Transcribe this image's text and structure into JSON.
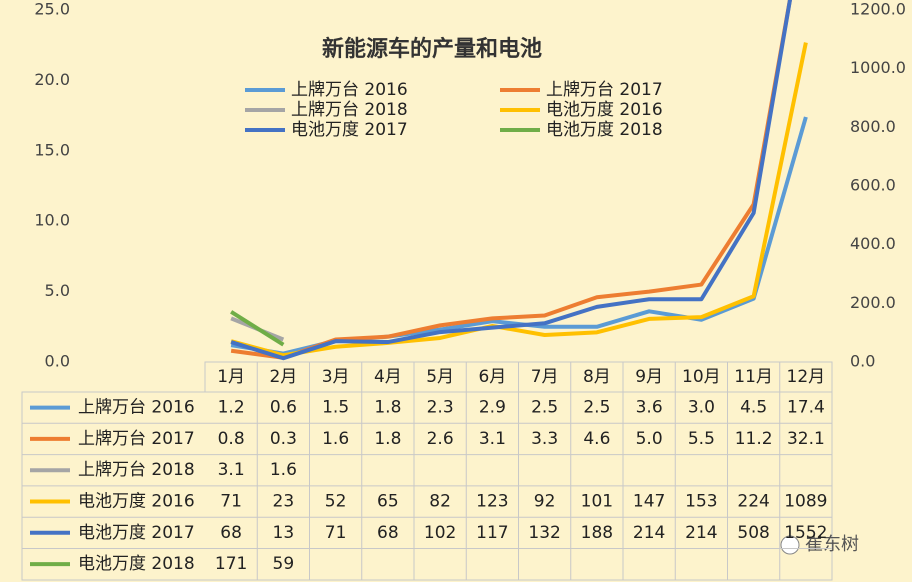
{
  "chart_data": {
    "type": "line",
    "title": "新能源车的产量和电池",
    "categories": [
      "1月",
      "2月",
      "3月",
      "4月",
      "5月",
      "6月",
      "7月",
      "8月",
      "9月",
      "10月",
      "11月",
      "12月"
    ],
    "ylim": [
      0,
      25
    ],
    "yticks": [
      {
        "value": 0,
        "label": "0.0"
      },
      {
        "value": 5,
        "label": "5.0"
      },
      {
        "value": 10,
        "label": "10.0"
      },
      {
        "value": 15,
        "label": "15.0"
      },
      {
        "value": 20,
        "label": "20.0"
      },
      {
        "value": 25,
        "label": "25.0"
      }
    ],
    "y2lim": [
      0,
      1200
    ],
    "y2ticks": [
      {
        "value": 0,
        "label": "0.0"
      },
      {
        "value": 200,
        "label": "200.0"
      },
      {
        "value": 400,
        "label": "400.0"
      },
      {
        "value": 600,
        "label": "600.0"
      },
      {
        "value": 800,
        "label": "800.0"
      },
      {
        "value": 1000,
        "label": "1000.0"
      },
      {
        "value": 1200,
        "label": "1200.0"
      }
    ],
    "grid": false,
    "legend": "top",
    "series": [
      {
        "name": "上牌万台 2016",
        "color": "#5b9bd5",
        "values": [
          1.2,
          0.6,
          1.5,
          1.8,
          2.3,
          2.9,
          2.5,
          2.5,
          3.6,
          3.0,
          4.5,
          17.4
        ],
        "value_labels": [
          "1.2",
          "0.6",
          "1.5",
          "1.8",
          "2.3",
          "2.9",
          "2.5",
          "2.5",
          "3.6",
          "3.0",
          "4.5",
          "17.4"
        ]
      },
      {
        "name": "上牌万台 2017",
        "color": "#ed7d31",
        "values": [
          0.8,
          0.3,
          1.6,
          1.8,
          2.6,
          3.1,
          3.3,
          4.6,
          5.0,
          5.5,
          11.2,
          32.1
        ],
        "value_labels": [
          "0.8",
          "0.3",
          "1.6",
          "1.8",
          "2.6",
          "3.1",
          "3.3",
          "4.6",
          "5.0",
          "5.5",
          "11.2",
          "32.1"
        ]
      },
      {
        "name": "上牌万台 2018",
        "color": "#a5a5a5",
        "values": [
          3.1,
          1.6,
          null,
          null,
          null,
          null,
          null,
          null,
          null,
          null,
          null,
          null
        ]
      },
      {
        "name": "电池万度 2016",
        "color": "#ffc000",
        "axis": "y2",
        "values": [
          71,
          23,
          52,
          65,
          82,
          123,
          92,
          101,
          147,
          153,
          224,
          1089
        ]
      },
      {
        "name": "电池万度 2017",
        "color": "#4472c4",
        "axis": "y2",
        "values": [
          68,
          13,
          71,
          68,
          102,
          117,
          132,
          188,
          214,
          214,
          508,
          1552
        ]
      },
      {
        "name": "电池万度 2018",
        "color": "#70ad47",
        "axis": "y2",
        "values": [
          171,
          59,
          null,
          null,
          null,
          null,
          null,
          null,
          null,
          null,
          null,
          null
        ]
      }
    ],
    "watermark": "崔东树"
  }
}
